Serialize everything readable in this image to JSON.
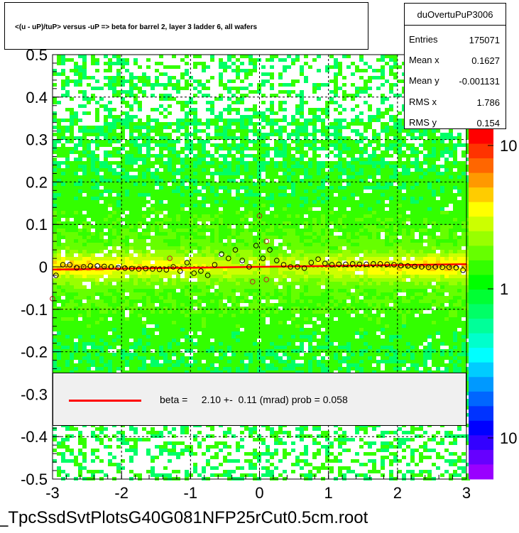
{
  "title": "<(u - uP)/tuP> versus  -uP => beta for barrel 2, layer 3 ladder 6, all wafers",
  "stats": {
    "name": "duOvertuPuP3006",
    "rows": [
      {
        "key": "Entries",
        "value": "175071"
      },
      {
        "key": "Mean x",
        "value": "0.1627"
      },
      {
        "key": "Mean y",
        "value": "-0.001131"
      },
      {
        "key": "RMS x",
        "value": "1.786"
      },
      {
        "key": "RMS y",
        "value": "0.154"
      }
    ]
  },
  "legend": {
    "text": "beta =     2.10 +-  0.11 (mrad) prob = 0.058",
    "line_color": "#ff0000"
  },
  "footer": "_TpcSsdSvtPlotsG40G081NFP25rCut0.5cm.root",
  "palette": {
    "labels": [
      "10",
      "1",
      "10"
    ],
    "colors": [
      "#ff0000",
      "#ff3300",
      "#ff6600",
      "#ff9900",
      "#ffcc00",
      "#ffff00",
      "#ccff00",
      "#99ff00",
      "#66ff00",
      "#33ff00",
      "#00ff00",
      "#00ff33",
      "#00ff66",
      "#00ff99",
      "#00ffcc",
      "#00ffff",
      "#00ccff",
      "#0099ff",
      "#0066ff",
      "#0033ff",
      "#0000ff",
      "#3300ff",
      "#6600ff",
      "#9900ff"
    ]
  },
  "chart_data": {
    "type": "heatmap",
    "xlim": [
      -3,
      3
    ],
    "ylim": [
      -0.5,
      0.5
    ],
    "x_ticks": [
      "-3",
      "-2",
      "-1",
      "0",
      "1",
      "2",
      "3"
    ],
    "y_ticks": [
      "-0.5",
      "-0.4",
      "-0.3",
      "-0.2",
      "-0.1",
      "0",
      "0.1",
      "0.2",
      "0.3",
      "0.4",
      "0.5"
    ],
    "grid": true,
    "log_z": true,
    "fit_line": {
      "x": [
        -3,
        3
      ],
      "y": [
        -0.0063,
        0.0063
      ],
      "color": "#ff0000"
    },
    "profile_points": [
      {
        "x": -2.95,
        "y": -0.02
      },
      {
        "x": -2.85,
        "y": 0.005
      },
      {
        "x": -2.75,
        "y": 0.005
      },
      {
        "x": -2.65,
        "y": -0.002
      },
      {
        "x": -2.55,
        "y": 0.0
      },
      {
        "x": -2.45,
        "y": 0.002
      },
      {
        "x": -2.35,
        "y": 0.002
      },
      {
        "x": -2.25,
        "y": 0.001
      },
      {
        "x": -2.15,
        "y": 0.0
      },
      {
        "x": -2.05,
        "y": -0.002
      },
      {
        "x": -1.95,
        "y": -0.003
      },
      {
        "x": -1.85,
        "y": -0.004
      },
      {
        "x": -1.75,
        "y": -0.005
      },
      {
        "x": -1.65,
        "y": -0.004
      },
      {
        "x": -1.55,
        "y": -0.005
      },
      {
        "x": -1.45,
        "y": -0.006
      },
      {
        "x": -1.35,
        "y": -0.007
      },
      {
        "x": -1.25,
        "y": 0.0
      },
      {
        "x": -1.15,
        "y": -0.01
      },
      {
        "x": -1.05,
        "y": 0.01
      },
      {
        "x": -0.95,
        "y": -0.015
      },
      {
        "x": -0.85,
        "y": -0.01
      },
      {
        "x": -0.75,
        "y": -0.02
      },
      {
        "x": -0.65,
        "y": 0.005
      },
      {
        "x": -0.55,
        "y": 0.03
      },
      {
        "x": -0.45,
        "y": 0.02
      },
      {
        "x": -0.35,
        "y": 0.04
      },
      {
        "x": -0.25,
        "y": 0.015
      },
      {
        "x": -0.15,
        "y": 0.0
      },
      {
        "x": -0.05,
        "y": 0.05
      },
      {
        "x": 0.05,
        "y": 0.02
      },
      {
        "x": 0.15,
        "y": 0.04
      },
      {
        "x": 0.25,
        "y": 0.015
      },
      {
        "x": 0.35,
        "y": 0.005
      },
      {
        "x": 0.45,
        "y": 0.0
      },
      {
        "x": 0.55,
        "y": 0.0
      },
      {
        "x": 0.65,
        "y": -0.003
      },
      {
        "x": 0.75,
        "y": 0.01
      },
      {
        "x": 0.85,
        "y": 0.018
      },
      {
        "x": 0.95,
        "y": 0.008
      },
      {
        "x": 1.05,
        "y": 0.005
      },
      {
        "x": 1.15,
        "y": 0.006
      },
      {
        "x": 1.25,
        "y": 0.006
      },
      {
        "x": 1.35,
        "y": 0.007
      },
      {
        "x": 1.45,
        "y": 0.006
      },
      {
        "x": 1.55,
        "y": 0.006
      },
      {
        "x": 1.65,
        "y": 0.007
      },
      {
        "x": 1.75,
        "y": 0.007
      },
      {
        "x": 1.85,
        "y": 0.006
      },
      {
        "x": 1.95,
        "y": 0.005
      },
      {
        "x": 2.05,
        "y": 0.003
      },
      {
        "x": 2.15,
        "y": 0.002
      },
      {
        "x": 2.25,
        "y": 0.001
      },
      {
        "x": 2.35,
        "y": 0.0
      },
      {
        "x": 2.45,
        "y": -0.001
      },
      {
        "x": 2.55,
        "y": 0.0
      },
      {
        "x": 2.65,
        "y": -0.001
      },
      {
        "x": 2.75,
        "y": -0.001
      },
      {
        "x": 2.85,
        "y": -0.002
      },
      {
        "x": 2.95,
        "y": -0.008
      }
    ],
    "outlier_points": [
      {
        "x": -3.0,
        "y": -0.075
      },
      {
        "x": -1.3,
        "y": 0.02
      },
      {
        "x": -0.1,
        "y": -0.035
      },
      {
        "x": 0.0,
        "y": 0.12
      },
      {
        "x": 0.1,
        "y": -0.03
      },
      {
        "x": 0.1,
        "y": 0.06
      }
    ]
  }
}
